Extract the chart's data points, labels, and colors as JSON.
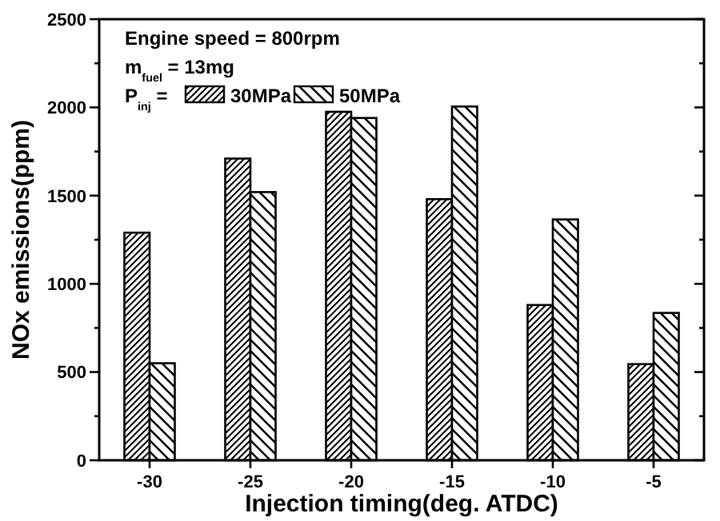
{
  "chart_data": {
    "type": "bar",
    "xlabel": "Injection timing(deg. ATDC)",
    "ylabel": "NOx emissions(ppm)",
    "categories": [
      "-30",
      "-25",
      "-20",
      "-15",
      "-10",
      "-5"
    ],
    "series": [
      {
        "name": "30MPa",
        "color": "#000000",
        "values": [
          1290,
          1710,
          1975,
          1480,
          880,
          545
        ]
      },
      {
        "name": "50MPa",
        "color": "#000000",
        "values": [
          550,
          1520,
          1940,
          2005,
          1365,
          835
        ]
      }
    ],
    "ylim": [
      0,
      2500
    ],
    "yticks": [
      0,
      {
        "value": 250,
        "label": null
      },
      500,
      {
        "value": 750,
        "label": null
      },
      1000,
      {
        "value": 1250,
        "label": null
      },
      1500,
      {
        "value": 1750,
        "label": null
      },
      2000,
      {
        "value": 2250,
        "label": null
      },
      2500
    ],
    "legend": "top left",
    "legend_title": "P$_{inj}$ =",
    "annotations": [
      "Engine speed = 800rpm",
      "m$_{fuel}$ = 13mg"
    ],
    "grid": false
  }
}
